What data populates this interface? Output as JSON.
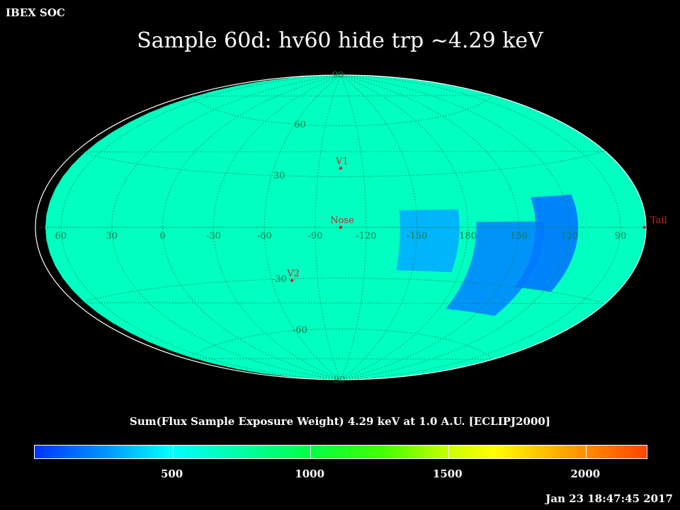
{
  "header_label": "IBEX SOC",
  "title": "Sample 60d: hv60 hide trp ~4.29 keV",
  "colorbar": {
    "title": "Sum(Flux Sample Exposure Weight)  4.29 keV at 1.0 A.U. [ECLIPJ2000]",
    "min": 0,
    "max": 2220,
    "ticks": [
      {
        "value": 500,
        "label": "500"
      },
      {
        "value": 1000,
        "label": "1000"
      },
      {
        "value": 1500,
        "label": "1500"
      },
      {
        "value": 2000,
        "label": "2000"
      }
    ]
  },
  "timestamp": "Jan 23 18:47:45 2017",
  "map": {
    "projection": "aitoff",
    "center_longitude": -105,
    "grid_color": "#0b7a4a",
    "label_color": "#0b7a4a",
    "marker_color": "#d32020",
    "latitude_labels": [
      {
        "text": "90",
        "lat": 90
      },
      {
        "text": "60",
        "lat": 60
      },
      {
        "text": "30",
        "lat": 30
      },
      {
        "text": "-30",
        "lat": -30
      },
      {
        "text": "-60",
        "lat": -60
      },
      {
        "text": "-90",
        "lat": -90
      }
    ],
    "longitude_labels": [
      {
        "text": "60",
        "lon": 60
      },
      {
        "text": "30",
        "lon": 30
      },
      {
        "text": "0",
        "lon": 0
      },
      {
        "text": "-30",
        "lon": -30
      },
      {
        "text": "-60",
        "lon": -60
      },
      {
        "text": "-90",
        "lon": -90
      },
      {
        "text": "-120",
        "lon": -120
      },
      {
        "text": "-150",
        "lon": -150
      },
      {
        "text": "180",
        "lon": 180
      },
      {
        "text": "150",
        "lon": 150
      },
      {
        "text": "120",
        "lon": 120
      },
      {
        "text": "90",
        "lon": 90
      }
    ],
    "markers": [
      {
        "name": "V1",
        "lon": -105,
        "lat": 35
      },
      {
        "name": "Nose",
        "lon": -105,
        "lat": 0
      },
      {
        "name": "V2",
        "lon": -73,
        "lat": -31
      },
      {
        "name": "Tail",
        "lon": 75,
        "lat": 0
      }
    ]
  }
}
